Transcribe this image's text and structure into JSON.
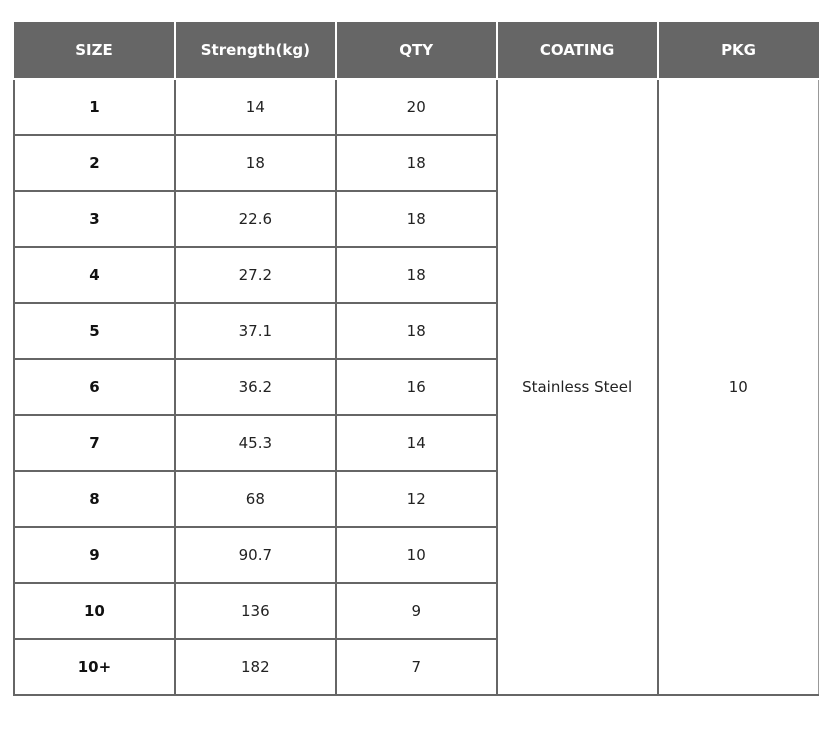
{
  "table": {
    "headers": [
      "SIZE",
      "Strength(kg)",
      "QTY",
      "COATING",
      "PKG"
    ],
    "rows": [
      {
        "size": "1",
        "strength": "14",
        "qty": "20"
      },
      {
        "size": "2",
        "strength": "18",
        "qty": "18"
      },
      {
        "size": "3",
        "strength": "22.6",
        "qty": "18"
      },
      {
        "size": "4",
        "strength": "27.2",
        "qty": "18"
      },
      {
        "size": "5",
        "strength": "37.1",
        "qty": "18"
      },
      {
        "size": "6",
        "strength": "36.2",
        "qty": "16"
      },
      {
        "size": "7",
        "strength": "45.3",
        "qty": "14"
      },
      {
        "size": "8",
        "strength": "68",
        "qty": "12"
      },
      {
        "size": "9",
        "strength": "90.7",
        "qty": "10"
      },
      {
        "size": "10",
        "strength": "136",
        "qty": "9"
      },
      {
        "size": "10+",
        "strength": "182",
        "qty": "7"
      }
    ],
    "coating": "Stainless Steel",
    "pkg": "10"
  },
  "colors": {
    "header_bg": "#666666",
    "header_text": "#ffffff",
    "border": "#666666"
  }
}
